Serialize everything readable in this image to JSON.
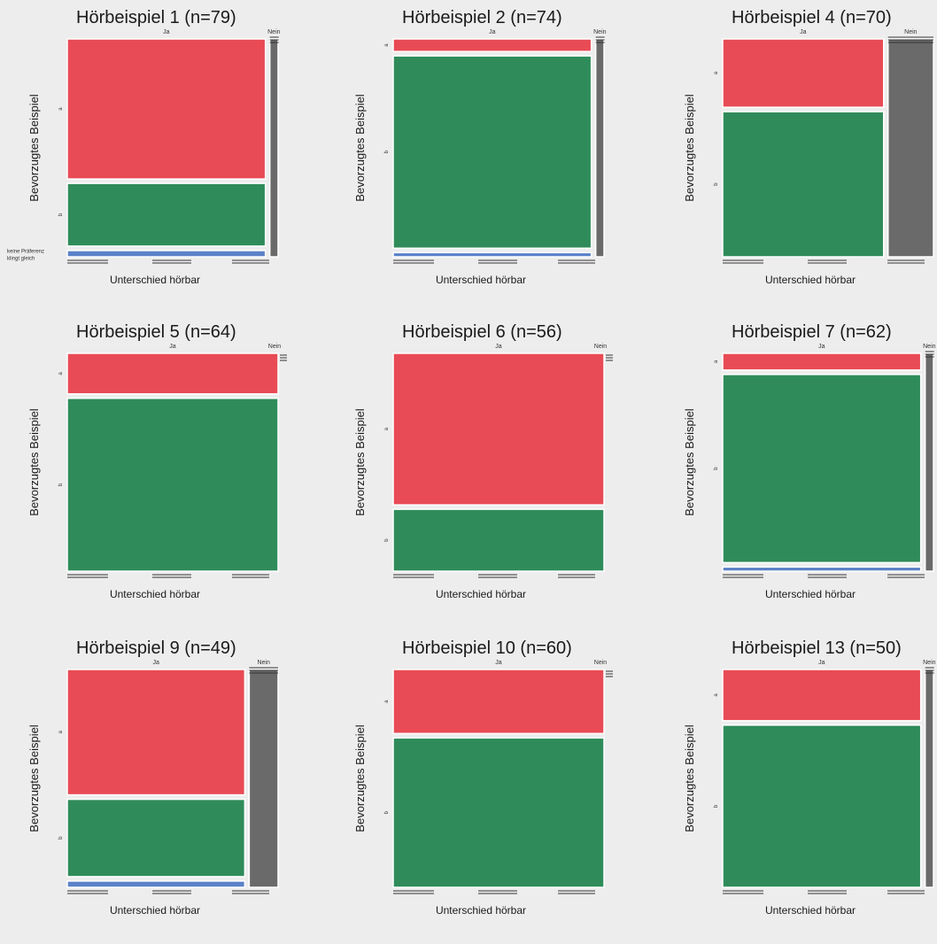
{
  "colors": {
    "a": "#e84b55",
    "b": "#2f8c5a",
    "keine": "#5b82c8",
    "nein": "#6a6a6a",
    "background": "#ededed"
  },
  "labels": {
    "ja": "Ja",
    "nein": "Nein",
    "cat_a": "a",
    "cat_b": "b",
    "keine_praeferenz": "keine Präferenz",
    "klingt_gleich": "klingt gleich",
    "ylabel": "Bevorzugtes Beispiel",
    "xlabel": "Unterschied hörbar"
  },
  "chart_data": [
    {
      "type": "mosaic",
      "title": "Hörbeispiel 1  (n=79)",
      "xlabel": "Unterschied hörbar",
      "ylabel": "Bevorzugtes Beispiel",
      "columns": [
        "Ja",
        "Nein"
      ],
      "column_share": [
        0.96,
        0.04
      ],
      "rows": [
        "a",
        "b",
        "keine Präferenz / klingt gleich"
      ],
      "ja": [
        0.67,
        0.3,
        0.03
      ],
      "nein": [
        0,
        0,
        1
      ],
      "show_keine_labels": true
    },
    {
      "type": "mosaic",
      "title": "Hörbeispiel 2  (n=74)",
      "xlabel": "Unterschied hörbar",
      "ylabel": "Bevorzugtes Beispiel",
      "columns": [
        "Ja",
        "Nein"
      ],
      "column_share": [
        0.96,
        0.04
      ],
      "rows": [
        "a",
        "b",
        "keine Präferenz / klingt gleich"
      ],
      "ja": [
        0.06,
        0.92,
        0.02
      ],
      "nein": [
        0,
        1,
        0
      ],
      "show_keine_labels": false
    },
    {
      "type": "mosaic",
      "title": "Hörbeispiel 4  (n=70)",
      "xlabel": "Unterschied hörbar",
      "ylabel": "Bevorzugtes Beispiel",
      "columns": [
        "Ja",
        "Nein"
      ],
      "column_share": [
        0.78,
        0.22
      ],
      "rows": [
        "a",
        "b",
        "keine Präferenz / klingt gleich"
      ],
      "ja": [
        0.32,
        0.68,
        0
      ],
      "nein": [
        0,
        1,
        0
      ],
      "show_keine_labels": false
    },
    {
      "type": "mosaic",
      "title": "Hörbeispiel 5  (n=64)",
      "xlabel": "Unterschied hörbar",
      "ylabel": "Bevorzugtes Beispiel",
      "columns": [
        "Ja",
        "Nein"
      ],
      "column_share": [
        1,
        0
      ],
      "rows": [
        "a",
        "b",
        "keine Präferenz / klingt gleich"
      ],
      "ja": [
        0.19,
        0.81,
        0
      ],
      "nein": [
        0,
        0,
        0
      ],
      "show_keine_labels": false
    },
    {
      "type": "mosaic",
      "title": "Hörbeispiel 6  (n=56)",
      "xlabel": "Unterschied hörbar",
      "ylabel": "Bevorzugtes Beispiel",
      "columns": [
        "Ja",
        "Nein"
      ],
      "column_share": [
        1,
        0
      ],
      "rows": [
        "a",
        "b",
        "keine Präferenz / klingt gleich"
      ],
      "ja": [
        0.71,
        0.29,
        0
      ],
      "nein": [
        0,
        0,
        0
      ],
      "show_keine_labels": false
    },
    {
      "type": "mosaic",
      "title": "Hörbeispiel 7  (n=62)",
      "xlabel": "Unterschied hörbar",
      "ylabel": "Bevorzugtes Beispiel",
      "columns": [
        "Ja",
        "Nein"
      ],
      "column_share": [
        0.96,
        0.04
      ],
      "rows": [
        "a",
        "b",
        "keine Präferenz / klingt gleich"
      ],
      "ja": [
        0.08,
        0.9,
        0.02
      ],
      "nein": [
        0,
        1,
        0
      ],
      "show_keine_labels": false
    },
    {
      "type": "mosaic",
      "title": "Hörbeispiel 9  (n=49)",
      "xlabel": "Unterschied hörbar",
      "ylabel": "Bevorzugtes Beispiel",
      "columns": [
        "Ja",
        "Nein"
      ],
      "column_share": [
        0.86,
        0.14
      ],
      "rows": [
        "a",
        "b",
        "keine Präferenz / klingt gleich"
      ],
      "ja": [
        0.6,
        0.37,
        0.03
      ],
      "nein": [
        0,
        1,
        0
      ],
      "show_keine_labels": false
    },
    {
      "type": "mosaic",
      "title": "Hörbeispiel 10  (n=60)",
      "xlabel": "Unterschied hörbar",
      "ylabel": "Bevorzugtes Beispiel",
      "columns": [
        "Ja",
        "Nein"
      ],
      "column_share": [
        1,
        0
      ],
      "rows": [
        "a",
        "b",
        "keine Präferenz / klingt gleich"
      ],
      "ja": [
        0.3,
        0.7,
        0
      ],
      "nein": [
        0,
        0,
        0
      ],
      "show_keine_labels": false
    },
    {
      "type": "mosaic",
      "title": "Hörbeispiel 13  (n=50)",
      "xlabel": "Unterschied hörbar",
      "ylabel": "Bevorzugtes Beispiel",
      "columns": [
        "Ja",
        "Nein"
      ],
      "column_share": [
        0.96,
        0.04
      ],
      "rows": [
        "a",
        "b",
        "keine Präferenz / klingt gleich"
      ],
      "ja": [
        0.24,
        0.76,
        0
      ],
      "nein": [
        0,
        1,
        0
      ],
      "show_keine_labels": false
    }
  ]
}
